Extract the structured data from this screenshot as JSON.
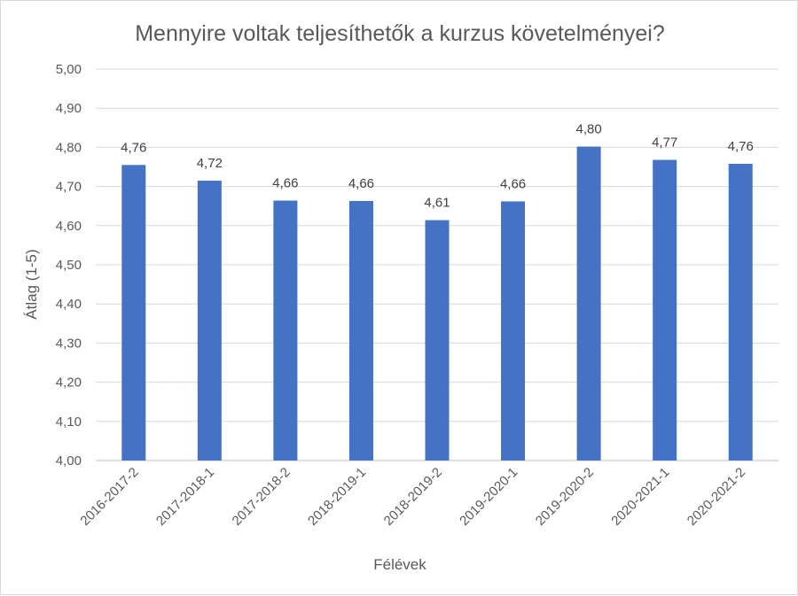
{
  "chart_data": {
    "type": "bar",
    "title": "Mennyire voltak teljesíthetők a kurzus követelményei?",
    "xlabel": "Félévek",
    "ylabel": "Átlag (1-5)",
    "categories": [
      "2016-2017-2",
      "2017-2018-1",
      "2017-2018-2",
      "2018-2019-1",
      "2018-2019-2",
      "2019-2020-1",
      "2019-2020-2",
      "2020-2021-1",
      "2020-2021-2"
    ],
    "values": [
      4.755,
      4.715,
      4.664,
      4.663,
      4.614,
      4.662,
      4.802,
      4.768,
      4.758
    ],
    "data_labels": [
      "4,76",
      "4,72",
      "4,66",
      "4,66",
      "4,61",
      "4,66",
      "4,80",
      "4,77",
      "4,76"
    ],
    "ylim": [
      4.0,
      5.0
    ],
    "yticks": [
      "4,00",
      "4,10",
      "4,20",
      "4,30",
      "4,40",
      "4,50",
      "4,60",
      "4,70",
      "4,80",
      "4,90",
      "5,00"
    ],
    "bar_color": "#4472c4",
    "grid": true,
    "legend": "none"
  }
}
